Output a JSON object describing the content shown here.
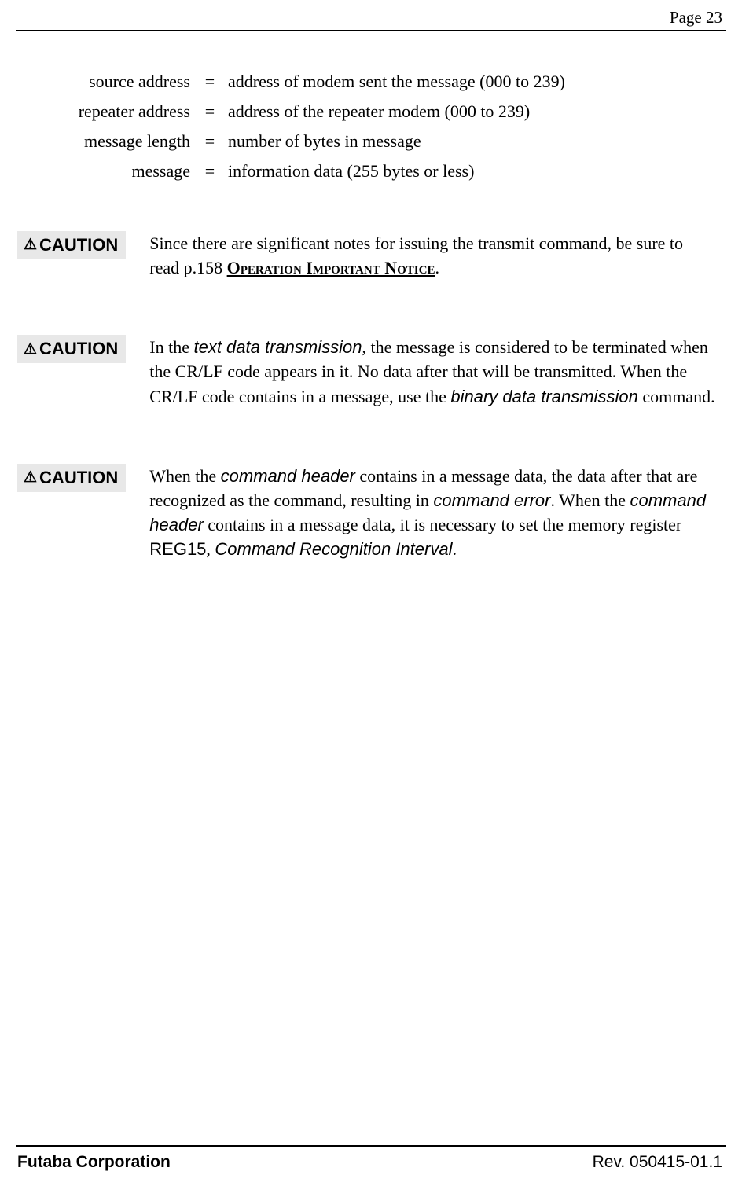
{
  "page_header": "Page  23",
  "definitions": [
    {
      "term": "source address",
      "eq": "=",
      "desc": "address of modem sent the message (000 to 239)"
    },
    {
      "term": "repeater address",
      "eq": "=",
      "desc": "address of the repeater modem (000 to 239)"
    },
    {
      "term": "message length",
      "eq": "=",
      "desc": "number of bytes in message"
    },
    {
      "term": "message",
      "eq": "=",
      "desc": "information data (255 bytes or less)"
    }
  ],
  "caution_label": "CAUTION",
  "warning_glyph": "⚠",
  "caution1": {
    "prefix": "Since there are significant notes for issuing the transmit command, be sure to read p.158 ",
    "link": "Operation Important Notice",
    "suffix": "."
  },
  "caution2": {
    "t1": "In the ",
    "i1": "text data transmission",
    "t2": ", the message is considered to be terminated when the CR/LF code appears in it. No data after that will be transmitted. When the CR/LF code contains in a message, use the ",
    "i2": "binary data transmission",
    "t3": " command."
  },
  "caution3": {
    "t1": "When the ",
    "i1": "command header",
    "t2": " contains in a message data, the data after that are recognized as the command, resulting in ",
    "i2": "command error",
    "t3": ". When the ",
    "i3": "command header",
    "t4": " contains in a message data, it is necessary to set the memory register ",
    "r1": "REG15",
    "t5": ", ",
    "i4": "Command Recognition Interval",
    "t6": "."
  },
  "footer_left": "Futaba Corporation",
  "footer_right": "Rev. 050415-01.1"
}
